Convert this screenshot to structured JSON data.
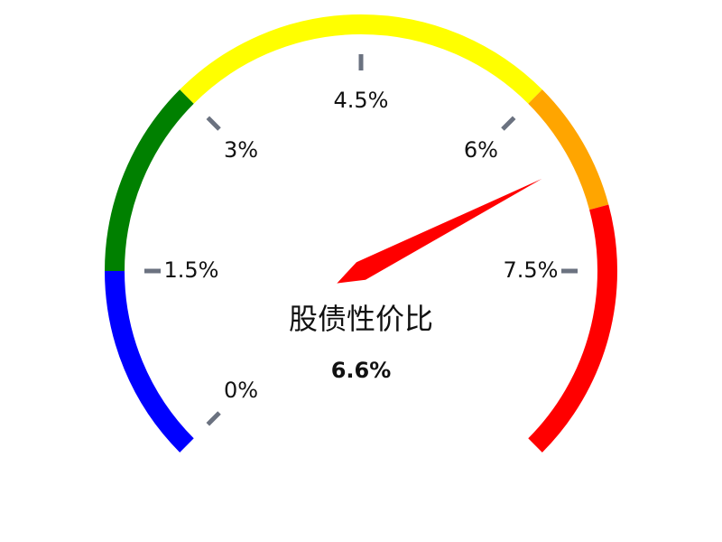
{
  "chart_data": {
    "type": "gauge",
    "title": "股债性价比",
    "value": 6.6,
    "value_label": "6.6%",
    "range": [
      0,
      9
    ],
    "ticks": [
      {
        "value": 0,
        "label": "0%"
      },
      {
        "value": 1.5,
        "label": "1.5%"
      },
      {
        "value": 3,
        "label": "3%"
      },
      {
        "value": 4.5,
        "label": "4.5%"
      },
      {
        "value": 6,
        "label": "6%"
      },
      {
        "value": 7.5,
        "label": "7.5%"
      }
    ],
    "bands": [
      {
        "from": 0,
        "to": 1.5,
        "color": "#0000ff"
      },
      {
        "from": 1.5,
        "to": 3,
        "color": "#008000"
      },
      {
        "from": 3,
        "to": 6,
        "color": "#ffff00"
      },
      {
        "from": 6,
        "to": 7,
        "color": "#ffa500"
      },
      {
        "from": 7,
        "to": 9,
        "color": "#ff0000"
      }
    ],
    "colors": {
      "needle": "#ff0000",
      "tick": "#6b7280",
      "text": "#111111"
    }
  }
}
